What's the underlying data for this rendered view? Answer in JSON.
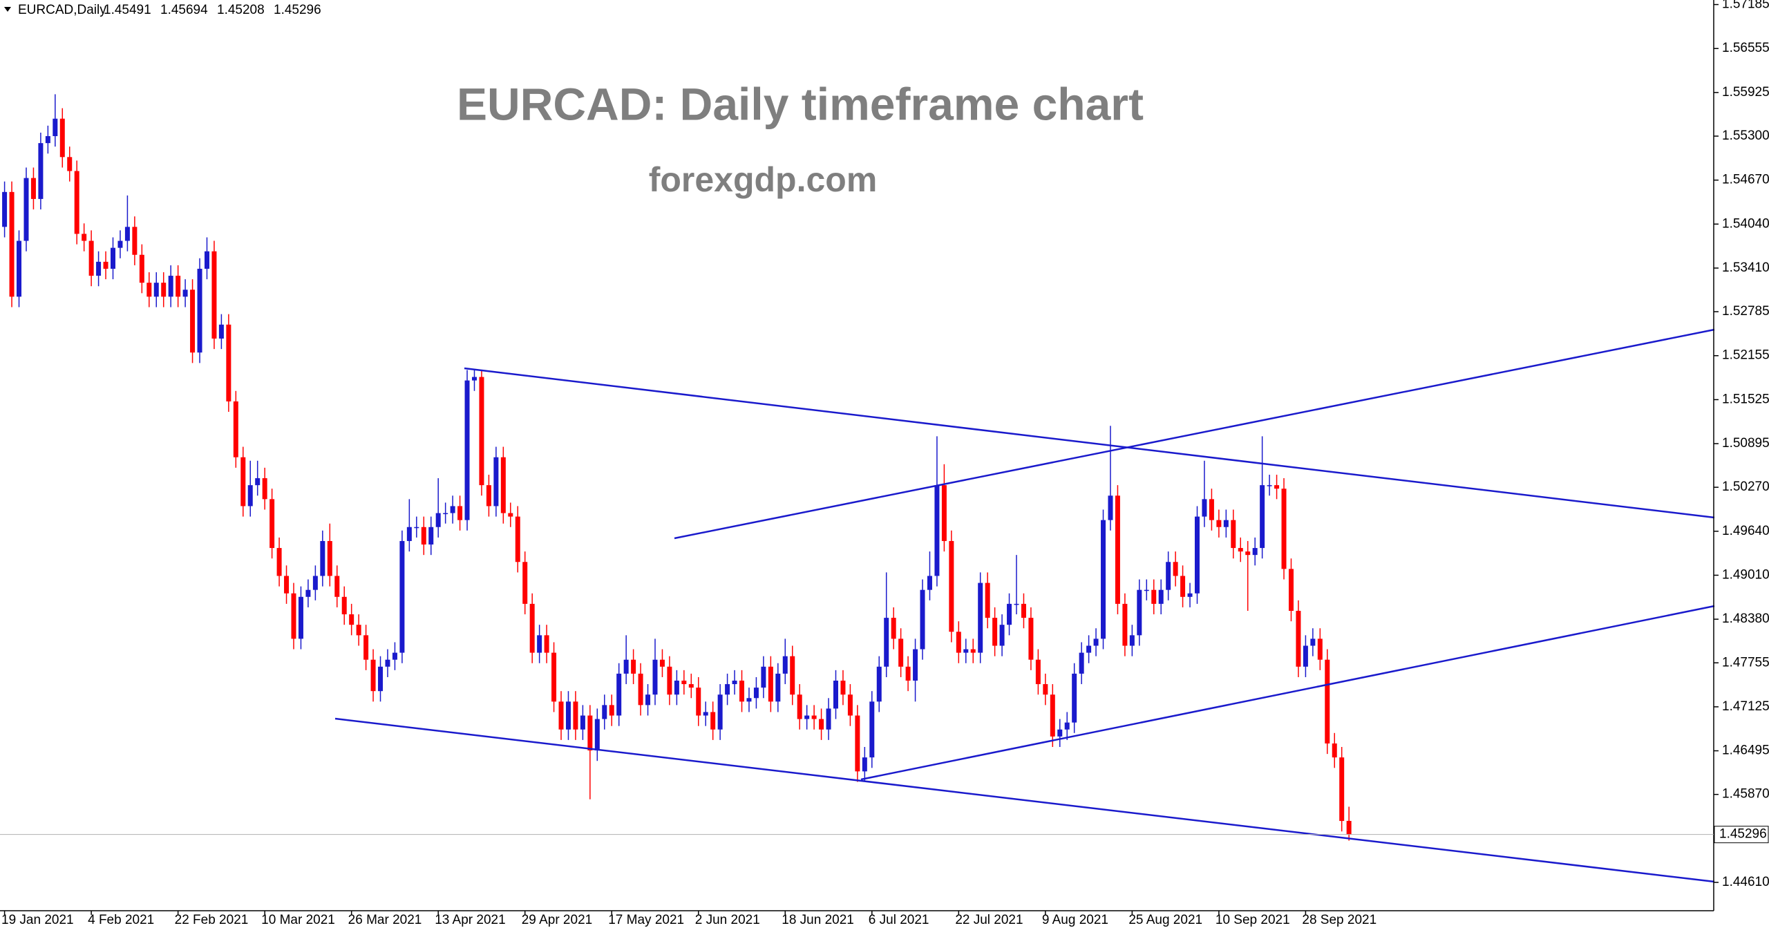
{
  "chart_data": {
    "type": "candlestick",
    "title": "EURCAD: Daily timeframe chart",
    "subtitle": "forexgdp.com",
    "header_symbol": "EURCAD,Daily",
    "header_values": [
      1.45491,
      1.45694,
      1.45208,
      1.45296
    ],
    "last_price": 1.45296,
    "up_color": "#1a1acc",
    "down_color": "#ff0000",
    "ylim": [
      1.44204,
      1.5725
    ],
    "yticks": [
      1.57185,
      1.56555,
      1.55925,
      {
        "value": 1.553,
        "label": "1.55300"
      },
      {
        "value": 1.5467,
        "label": "1.54670"
      },
      {
        "value": 1.5404,
        "label": "1.54040"
      },
      {
        "value": 1.5341,
        "label": "1.53410"
      },
      1.52785,
      1.52155,
      1.51525,
      1.50895,
      {
        "value": 1.5027,
        "label": "1.50270"
      },
      {
        "value": 1.4964,
        "label": "1.49640"
      },
      {
        "value": 1.4901,
        "label": "1.49010"
      },
      {
        "value": 1.4838,
        "label": "1.48380"
      },
      1.47755,
      1.47125,
      1.46495,
      {
        "value": 1.4587,
        "label": "1.45870"
      },
      {
        "value": 1.4461,
        "label": "1.44610"
      }
    ],
    "categories": [
      "19 Jan 2021",
      null,
      null,
      null,
      null,
      null,
      null,
      null,
      null,
      null,
      null,
      null,
      "4 Feb 2021",
      null,
      null,
      null,
      null,
      null,
      null,
      null,
      null,
      null,
      null,
      null,
      "22 Feb 2021",
      null,
      null,
      null,
      null,
      null,
      null,
      null,
      null,
      null,
      null,
      null,
      "10 Mar 2021",
      null,
      null,
      null,
      null,
      null,
      null,
      null,
      null,
      null,
      null,
      null,
      "26 Mar 2021",
      null,
      null,
      null,
      null,
      null,
      null,
      null,
      null,
      null,
      null,
      null,
      "13 Apr 2021",
      null,
      null,
      null,
      null,
      null,
      null,
      null,
      null,
      null,
      null,
      null,
      "29 Apr 2021",
      null,
      null,
      null,
      null,
      null,
      null,
      null,
      null,
      null,
      null,
      null,
      "17 May 2021",
      null,
      null,
      null,
      null,
      null,
      null,
      null,
      null,
      null,
      null,
      null,
      "2 Jun 2021",
      null,
      null,
      null,
      null,
      null,
      null,
      null,
      null,
      null,
      null,
      null,
      "18 Jun 2021",
      null,
      null,
      null,
      null,
      null,
      null,
      null,
      null,
      null,
      null,
      null,
      "6 Jul 2021",
      null,
      null,
      null,
      null,
      null,
      null,
      null,
      null,
      null,
      null,
      null,
      "22 Jul 2021",
      null,
      null,
      null,
      null,
      null,
      null,
      null,
      null,
      null,
      null,
      null,
      "9 Aug 2021",
      null,
      null,
      null,
      null,
      null,
      null,
      null,
      null,
      null,
      null,
      null,
      "25 Aug 2021",
      null,
      null,
      null,
      null,
      null,
      null,
      null,
      null,
      null,
      null,
      null,
      "10 Sep 2021",
      null,
      null,
      null,
      null,
      null,
      null,
      null,
      null,
      null,
      null,
      null,
      "28 Sep 2021",
      null,
      null,
      null,
      null,
      null,
      null
    ],
    "open": [
      1.54,
      1.545,
      1.53,
      1.538,
      1.547,
      1.544,
      1.552,
      1.553,
      1.5555,
      1.55,
      1.548,
      1.539,
      1.538,
      1.533,
      1.535,
      1.534,
      1.537,
      1.538,
      1.54,
      1.536,
      1.532,
      1.53,
      1.532,
      1.53,
      1.533,
      1.53,
      1.531,
      1.522,
      1.534,
      1.5365,
      1.524,
      1.526,
      1.515,
      1.507,
      1.5,
      1.503,
      1.504,
      1.501,
      1.494,
      1.49,
      1.4875,
      1.481,
      1.487,
      1.488,
      1.49,
      1.495,
      1.49,
      1.487,
      1.4845,
      1.483,
      1.4815,
      1.478,
      1.4735,
      1.477,
      1.478,
      1.479,
      1.495,
      1.497,
      1.497,
      1.4945,
      1.497,
      1.499,
      1.499,
      1.5,
      1.498,
      1.518,
      1.5185,
      1.503,
      1.5,
      1.507,
      1.499,
      1.4985,
      1.492,
      1.486,
      1.479,
      1.4815,
      1.479,
      1.472,
      1.468,
      1.472,
      1.468,
      1.47,
      1.465,
      1.4695,
      1.4715,
      1.47,
      1.476,
      1.478,
      1.476,
      1.4715,
      1.473,
      1.478,
      1.477,
      1.473,
      1.475,
      1.4745,
      1.474,
      1.47,
      1.4705,
      1.468,
      1.473,
      1.4745,
      1.475,
      1.472,
      1.4725,
      1.474,
      1.477,
      1.472,
      1.476,
      1.4785,
      1.473,
      1.4695,
      1.47,
      1.4695,
      1.468,
      1.471,
      1.475,
      1.473,
      1.47,
      1.462,
      1.464,
      1.472,
      1.477,
      1.484,
      1.481,
      1.477,
      1.475,
      1.4795,
      1.488,
      1.49,
      1.503,
      1.495,
      1.482,
      1.479,
      1.4795,
      1.479,
      1.489,
      1.484,
      1.48,
      1.483,
      1.486,
      1.486,
      1.484,
      1.478,
      1.4745,
      1.473,
      1.467,
      1.468,
      1.469,
      1.476,
      1.479,
      1.48,
      1.481,
      1.498,
      1.5015,
      1.486,
      1.48,
      1.4815,
      1.488,
      1.488,
      1.486,
      1.488,
      1.492,
      1.49,
      1.487,
      1.4875,
      1.4985,
      1.501,
      1.498,
      1.497,
      1.498,
      1.494,
      1.4935,
      1.493,
      1.494,
      1.503,
      1.503,
      1.5025,
      1.491,
      1.485,
      1.477,
      1.48,
      1.481,
      1.478,
      1.466,
      1.464,
      1.45491
    ],
    "high": [
      1.5465,
      1.5465,
      1.5395,
      1.5485,
      1.5485,
      1.5535,
      1.5545,
      1.559,
      1.557,
      1.5515,
      1.5495,
      1.5405,
      1.5395,
      1.5365,
      1.5365,
      1.5385,
      1.5395,
      1.5445,
      1.5415,
      1.5375,
      1.5335,
      1.5335,
      1.5335,
      1.5345,
      1.5345,
      1.5325,
      1.5325,
      1.5355,
      1.5385,
      1.538,
      1.5275,
      1.5275,
      1.5165,
      1.5085,
      1.5065,
      1.5065,
      1.5055,
      1.5025,
      1.4955,
      1.4915,
      1.489,
      1.4885,
      1.4895,
      1.4915,
      1.4965,
      1.4975,
      1.4915,
      1.4885,
      1.486,
      1.4845,
      1.483,
      1.4795,
      1.4785,
      1.4795,
      1.4805,
      1.4965,
      1.501,
      1.4985,
      1.4985,
      1.4985,
      1.504,
      1.5005,
      1.5015,
      1.5015,
      1.5195,
      1.5195,
      1.5195,
      1.5045,
      1.5085,
      1.5085,
      1.5005,
      1.5,
      1.4935,
      1.4875,
      1.483,
      1.483,
      1.4805,
      1.4735,
      1.4735,
      1.4735,
      1.4715,
      1.4715,
      1.471,
      1.473,
      1.473,
      1.4775,
      1.4815,
      1.4795,
      1.4775,
      1.4745,
      1.481,
      1.4795,
      1.4785,
      1.4765,
      1.4765,
      1.476,
      1.4755,
      1.472,
      1.472,
      1.4745,
      1.476,
      1.4765,
      1.4765,
      1.474,
      1.4755,
      1.4785,
      1.4785,
      1.4775,
      1.481,
      1.48,
      1.4745,
      1.4715,
      1.4715,
      1.471,
      1.4725,
      1.4765,
      1.4765,
      1.4745,
      1.4715,
      1.4655,
      1.4735,
      1.4785,
      1.4905,
      1.4855,
      1.4825,
      1.4785,
      1.481,
      1.4895,
      1.4935,
      1.51,
      1.506,
      1.4965,
      1.4835,
      1.481,
      1.481,
      1.4905,
      1.4905,
      1.4855,
      1.4845,
      1.4875,
      1.493,
      1.4875,
      1.4855,
      1.4795,
      1.476,
      1.4745,
      1.4695,
      1.4705,
      1.4775,
      1.4805,
      1.4815,
      1.4825,
      1.4995,
      1.5115,
      1.503,
      1.4875,
      1.483,
      1.4895,
      1.4895,
      1.4895,
      1.4895,
      1.4935,
      1.4935,
      1.4915,
      1.489,
      1.5,
      1.5065,
      1.5025,
      1.4995,
      1.4995,
      1.4995,
      1.4955,
      1.495,
      1.4955,
      1.51,
      1.5045,
      1.5045,
      1.504,
      1.4925,
      1.4865,
      1.4815,
      1.4825,
      1.4825,
      1.4795,
      1.4675,
      1.4655,
      1.45694
    ],
    "low": [
      1.5385,
      1.5285,
      1.5285,
      1.5365,
      1.5425,
      1.5425,
      1.5505,
      1.5515,
      1.5485,
      1.5465,
      1.5375,
      1.5365,
      1.5315,
      1.5315,
      1.5325,
      1.5325,
      1.5355,
      1.5365,
      1.5345,
      1.5305,
      1.5285,
      1.5285,
      1.5285,
      1.5285,
      1.5285,
      1.5285,
      1.5205,
      1.5205,
      1.5325,
      1.5225,
      1.5225,
      1.5135,
      1.5055,
      1.4985,
      1.4985,
      1.5015,
      1.4995,
      1.4925,
      1.4885,
      1.486,
      1.4795,
      1.4795,
      1.4855,
      1.4865,
      1.4885,
      1.4885,
      1.4855,
      1.483,
      1.4815,
      1.48,
      1.4765,
      1.472,
      1.472,
      1.4755,
      1.4765,
      1.4775,
      1.4935,
      1.4955,
      1.493,
      1.493,
      1.4955,
      1.4975,
      1.4975,
      1.4965,
      1.4965,
      1.5165,
      1.5015,
      1.4985,
      1.4985,
      1.4975,
      1.497,
      1.4905,
      1.4845,
      1.4775,
      1.4775,
      1.4775,
      1.4705,
      1.4665,
      1.4665,
      1.4665,
      1.4665,
      1.458,
      1.4635,
      1.468,
      1.4685,
      1.4685,
      1.4745,
      1.4745,
      1.47,
      1.47,
      1.4715,
      1.4755,
      1.4715,
      1.4715,
      1.473,
      1.4725,
      1.4685,
      1.4685,
      1.4665,
      1.4665,
      1.4715,
      1.473,
      1.4705,
      1.4705,
      1.471,
      1.4725,
      1.4705,
      1.4705,
      1.4745,
      1.4715,
      1.468,
      1.468,
      1.468,
      1.4665,
      1.4665,
      1.4695,
      1.4715,
      1.4685,
      1.4605,
      1.4605,
      1.4625,
      1.4705,
      1.4755,
      1.4795,
      1.4755,
      1.4735,
      1.472,
      1.478,
      1.4865,
      1.4885,
      1.4935,
      1.4805,
      1.4775,
      1.4775,
      1.4775,
      1.4775,
      1.4825,
      1.4785,
      1.4785,
      1.4815,
      1.4845,
      1.4825,
      1.4765,
      1.473,
      1.4715,
      1.4655,
      1.4655,
      1.4665,
      1.4675,
      1.4745,
      1.4775,
      1.4785,
      1.4795,
      1.4965,
      1.4845,
      1.4785,
      1.4785,
      1.48,
      1.4865,
      1.4845,
      1.4845,
      1.4865,
      1.4885,
      1.4855,
      1.4855,
      1.486,
      1.497,
      1.4965,
      1.4955,
      1.4955,
      1.4925,
      1.492,
      1.485,
      1.4915,
      1.4925,
      1.5015,
      1.501,
      1.4895,
      1.4835,
      1.4755,
      1.4755,
      1.4785,
      1.4765,
      1.4645,
      1.4625,
      1.4534,
      1.45208
    ],
    "close": [
      1.545,
      1.53,
      1.538,
      1.547,
      1.544,
      1.552,
      1.553,
      1.5555,
      1.55,
      1.548,
      1.539,
      1.538,
      1.533,
      1.535,
      1.534,
      1.537,
      1.538,
      1.54,
      1.536,
      1.532,
      1.53,
      1.532,
      1.53,
      1.533,
      1.53,
      1.531,
      1.522,
      1.534,
      1.5365,
      1.524,
      1.526,
      1.515,
      1.507,
      1.5,
      1.503,
      1.504,
      1.501,
      1.494,
      1.49,
      1.4875,
      1.481,
      1.487,
      1.488,
      1.49,
      1.495,
      1.49,
      1.487,
      1.4845,
      1.483,
      1.4815,
      1.478,
      1.4735,
      1.477,
      1.478,
      1.479,
      1.495,
      1.497,
      1.497,
      1.4945,
      1.497,
      1.499,
      1.499,
      1.5,
      1.498,
      1.518,
      1.5185,
      1.503,
      1.5,
      1.507,
      1.499,
      1.4985,
      1.492,
      1.486,
      1.479,
      1.4815,
      1.479,
      1.472,
      1.468,
      1.472,
      1.468,
      1.47,
      1.465,
      1.4695,
      1.4715,
      1.47,
      1.476,
      1.478,
      1.476,
      1.4715,
      1.473,
      1.478,
      1.477,
      1.473,
      1.475,
      1.4745,
      1.474,
      1.47,
      1.4705,
      1.468,
      1.473,
      1.4745,
      1.475,
      1.472,
      1.4725,
      1.474,
      1.477,
      1.472,
      1.476,
      1.4785,
      1.473,
      1.4695,
      1.47,
      1.4695,
      1.468,
      1.471,
      1.475,
      1.473,
      1.47,
      1.462,
      1.464,
      1.472,
      1.477,
      1.484,
      1.481,
      1.477,
      1.475,
      1.4795,
      1.488,
      1.49,
      1.503,
      1.495,
      1.482,
      1.479,
      1.4795,
      1.479,
      1.489,
      1.484,
      1.48,
      1.483,
      1.486,
      1.486,
      1.484,
      1.478,
      1.4745,
      1.473,
      1.467,
      1.468,
      1.469,
      1.476,
      1.479,
      1.48,
      1.481,
      1.498,
      1.5015,
      1.486,
      1.48,
      1.4815,
      1.488,
      1.488,
      1.486,
      1.488,
      1.492,
      1.49,
      1.487,
      1.4875,
      1.4985,
      1.501,
      1.498,
      1.497,
      1.498,
      1.494,
      1.4935,
      1.493,
      1.494,
      1.503,
      1.503,
      1.5025,
      1.491,
      1.485,
      1.477,
      1.48,
      1.481,
      1.478,
      1.466,
      1.464,
      1.4549,
      1.45296
    ]
  }
}
